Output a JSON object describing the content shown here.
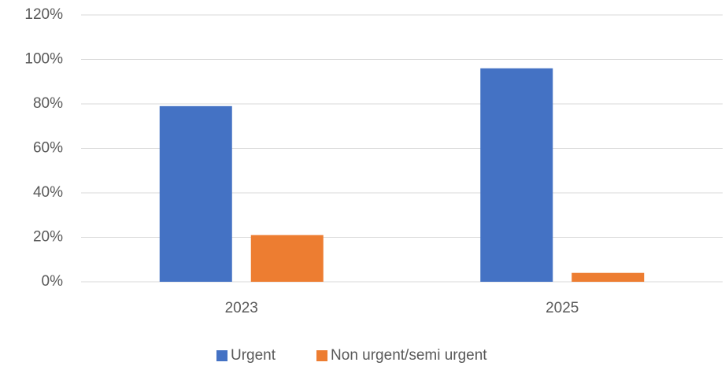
{
  "chart_data": {
    "type": "bar",
    "categories": [
      "2023",
      "2025"
    ],
    "series": [
      {
        "name": "Urgent",
        "color": "#4472c4",
        "values": [
          79,
          96
        ]
      },
      {
        "name": "Non urgent/semi urgent",
        "color": "#ed7d31",
        "values": [
          21,
          4
        ]
      }
    ],
    "ylim": [
      0,
      120
    ],
    "yticks": [
      {
        "value": 0,
        "label": "0%"
      },
      {
        "value": 20,
        "label": "20%"
      },
      {
        "value": 40,
        "label": "40%"
      },
      {
        "value": 60,
        "label": "60%"
      },
      {
        "value": 80,
        "label": "80%"
      },
      {
        "value": 100,
        "label": "100%"
      },
      {
        "value": 120,
        "label": "120%"
      }
    ],
    "grid": true,
    "legend": "bottom"
  }
}
